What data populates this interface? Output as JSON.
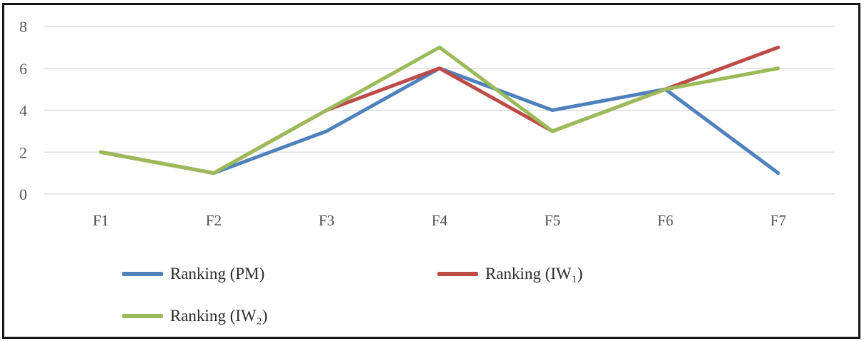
{
  "figure": {
    "background": "#ffffff",
    "border_color": "#161616",
    "gridline_color": "#d8d8d8",
    "axis_text_color": "#5d5d5d"
  },
  "chart_data": {
    "type": "line",
    "title": "",
    "xlabel": "",
    "ylabel": "",
    "categories": [
      "F1",
      "F2",
      "F3",
      "F4",
      "F5",
      "F6",
      "F7"
    ],
    "series": [
      {
        "name": "Ranking (PM)",
        "color": "#4F81BD",
        "values": [
          2,
          1,
          3,
          6,
          4,
          5,
          1
        ]
      },
      {
        "name": "Ranking (IW₁)",
        "color": "#BE4B48",
        "values": [
          2,
          1,
          4,
          6,
          3,
          5,
          7
        ]
      },
      {
        "name": "Ranking (IW₂)",
        "color": "#9BBB59",
        "values": [
          2,
          1,
          4,
          7,
          3,
          5,
          6
        ]
      }
    ],
    "ylim": [
      0,
      8
    ],
    "yticks": [
      0,
      2,
      4,
      6,
      8
    ],
    "grid": "horizontal",
    "legend_position": "bottom",
    "markers": false
  }
}
